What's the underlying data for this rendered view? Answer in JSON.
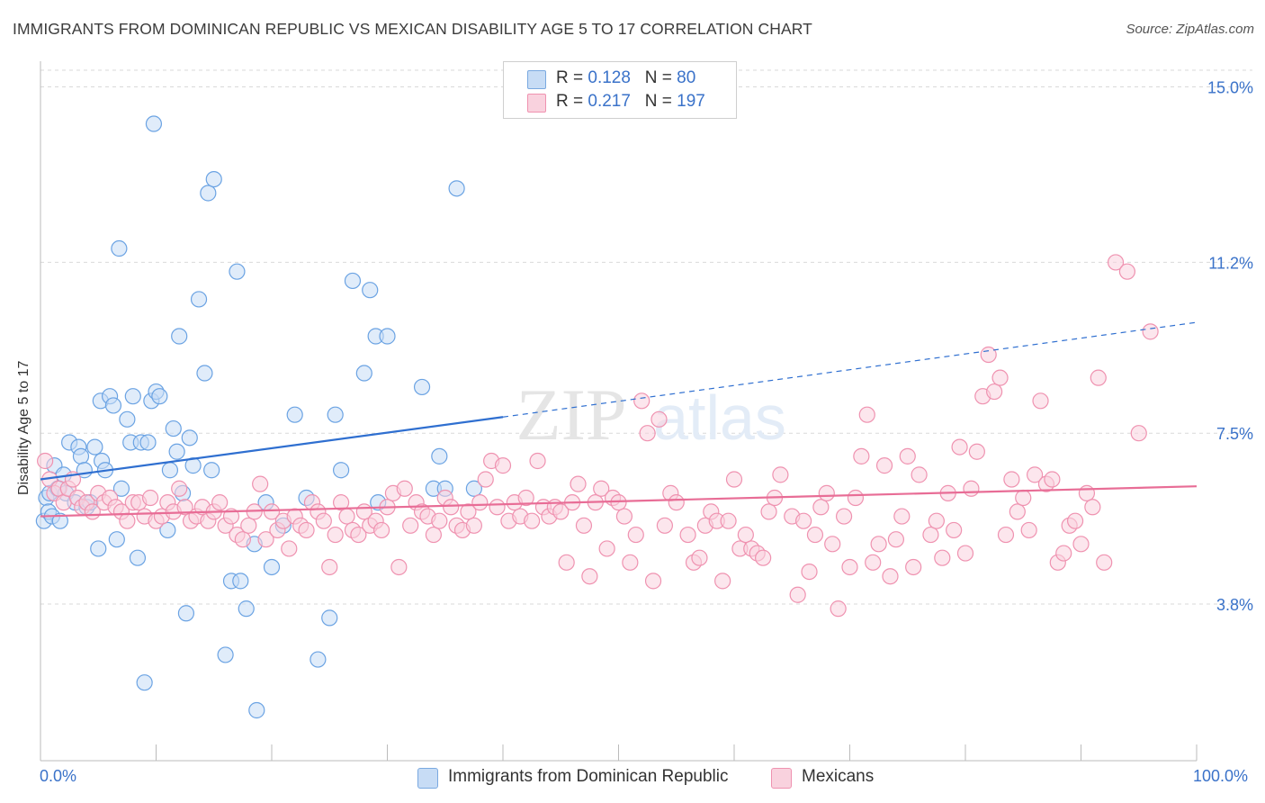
{
  "title": "IMMIGRANTS FROM DOMINICAN REPUBLIC VS MEXICAN DISABILITY AGE 5 TO 17 CORRELATION CHART",
  "source": "Source: ZipAtlas.com",
  "watermark": "ZIPatlas",
  "legend_top": {
    "rows": [
      {
        "r_label": "R = ",
        "r_value": "0.128",
        "n_label": "N = ",
        "n_value": "80",
        "color": "#a9c8f0"
      },
      {
        "r_label": "R = ",
        "r_value": "0.217",
        "n_label": "N = ",
        "n_value": "197",
        "color": "#f6b8cb"
      }
    ]
  },
  "legend_bottom": [
    {
      "label": "Immigrants from Dominican Republic",
      "color": "#a9c8f0"
    },
    {
      "label": "Mexicans",
      "color": "#f6b8cb"
    }
  ],
  "colors": {
    "blue_stroke": "#6ba3e3",
    "blue_fill": "#c7dcf5",
    "blue_line": "#2f6fd0",
    "pink_stroke": "#ef92b0",
    "pink_fill": "#f9d2de",
    "pink_line": "#e86d96",
    "tick_label": "#3a72c9",
    "grid": "#d9d9d9"
  },
  "chart_data": {
    "type": "scatter",
    "title": "IMMIGRANTS FROM DOMINICAN REPUBLIC VS MEXICAN DISABILITY AGE 5 TO 17 CORRELATION CHART",
    "xlabel": "",
    "ylabel": "Disability Age 5 to 17",
    "xlim": [
      0,
      100
    ],
    "ylim": [
      0.5,
      15.5
    ],
    "x_tick_labels": [
      "0.0%",
      "100.0%"
    ],
    "y_ticks": [
      3.8,
      7.5,
      11.2,
      15.0
    ],
    "y_tick_labels": [
      "3.8%",
      "7.5%",
      "11.2%",
      "15.0%"
    ],
    "grid": true,
    "legend_position": "top-center",
    "series": [
      {
        "name": "Immigrants from Dominican Republic",
        "color": "#6ba3e3",
        "trend": {
          "x": [
            0,
            40,
            100
          ],
          "y": [
            6.5,
            7.85,
            9.9
          ],
          "solid_until": 40
        },
        "points": [
          [
            0.3,
            5.6
          ],
          [
            0.5,
            6.1
          ],
          [
            0.7,
            5.8
          ],
          [
            0.8,
            6.2
          ],
          [
            1.0,
            5.7
          ],
          [
            1.2,
            6.8
          ],
          [
            1.5,
            6.3
          ],
          [
            1.7,
            5.6
          ],
          [
            2.0,
            6.6
          ],
          [
            2.2,
            6.2
          ],
          [
            2.5,
            7.3
          ],
          [
            3.0,
            6.0
          ],
          [
            3.3,
            7.2
          ],
          [
            3.5,
            7.0
          ],
          [
            3.8,
            6.7
          ],
          [
            4.0,
            5.9
          ],
          [
            4.3,
            6.0
          ],
          [
            4.7,
            7.2
          ],
          [
            5.0,
            5.0
          ],
          [
            5.3,
            6.9
          ],
          [
            5.6,
            6.7
          ],
          [
            5.2,
            8.2
          ],
          [
            6.0,
            8.3
          ],
          [
            6.3,
            8.1
          ],
          [
            6.6,
            5.2
          ],
          [
            6.8,
            11.5
          ],
          [
            7.0,
            6.3
          ],
          [
            7.5,
            7.8
          ],
          [
            7.8,
            7.3
          ],
          [
            8.0,
            8.3
          ],
          [
            8.4,
            4.8
          ],
          [
            8.7,
            7.3
          ],
          [
            9.0,
            2.1
          ],
          [
            9.3,
            7.3
          ],
          [
            9.6,
            8.2
          ],
          [
            9.8,
            14.2
          ],
          [
            10.0,
            8.4
          ],
          [
            10.3,
            8.3
          ],
          [
            11.0,
            5.4
          ],
          [
            11.2,
            6.7
          ],
          [
            11.5,
            7.6
          ],
          [
            11.8,
            7.1
          ],
          [
            12.0,
            9.6
          ],
          [
            12.3,
            6.2
          ],
          [
            12.6,
            3.6
          ],
          [
            12.9,
            7.4
          ],
          [
            13.2,
            6.8
          ],
          [
            13.7,
            10.4
          ],
          [
            14.2,
            8.8
          ],
          [
            14.5,
            12.7
          ],
          [
            14.8,
            6.7
          ],
          [
            15.0,
            13.0
          ],
          [
            16.0,
            2.7
          ],
          [
            16.5,
            4.3
          ],
          [
            17.0,
            11.0
          ],
          [
            17.3,
            4.3
          ],
          [
            17.8,
            3.7
          ],
          [
            18.5,
            5.1
          ],
          [
            18.7,
            1.5
          ],
          [
            19.5,
            6.0
          ],
          [
            20.0,
            4.6
          ],
          [
            21.0,
            5.5
          ],
          [
            22.0,
            7.9
          ],
          [
            23.0,
            6.1
          ],
          [
            24.0,
            2.6
          ],
          [
            25.0,
            3.5
          ],
          [
            25.5,
            7.9
          ],
          [
            26.0,
            6.7
          ],
          [
            27.0,
            10.8
          ],
          [
            28.0,
            8.8
          ],
          [
            28.5,
            10.6
          ],
          [
            29.0,
            9.6
          ],
          [
            29.2,
            6.0
          ],
          [
            30.0,
            9.6
          ],
          [
            33.0,
            8.5
          ],
          [
            34.0,
            6.3
          ],
          [
            34.5,
            7.0
          ],
          [
            35.0,
            6.3
          ],
          [
            36.0,
            12.8
          ],
          [
            37.5,
            6.3
          ]
        ]
      },
      {
        "name": "Mexicans",
        "color": "#ef92b0",
        "trend": {
          "x": [
            0,
            100
          ],
          "y": [
            5.7,
            6.35
          ]
        },
        "points": [
          [
            0.4,
            6.9
          ],
          [
            0.8,
            6.5
          ],
          [
            1.2,
            6.2
          ],
          [
            1.6,
            6.3
          ],
          [
            2.0,
            6.0
          ],
          [
            2.4,
            6.3
          ],
          [
            2.8,
            6.5
          ],
          [
            3.2,
            6.1
          ],
          [
            3.6,
            5.9
          ],
          [
            4.0,
            6.0
          ],
          [
            4.5,
            5.8
          ],
          [
            5.0,
            6.2
          ],
          [
            5.5,
            6.0
          ],
          [
            6.0,
            6.1
          ],
          [
            6.5,
            5.9
          ],
          [
            7.0,
            5.8
          ],
          [
            7.5,
            5.6
          ],
          [
            8.0,
            6.0
          ],
          [
            8.5,
            6.0
          ],
          [
            9.0,
            5.7
          ],
          [
            9.5,
            6.1
          ],
          [
            10.0,
            5.6
          ],
          [
            10.5,
            5.7
          ],
          [
            11.0,
            6.0
          ],
          [
            11.5,
            5.8
          ],
          [
            12.0,
            6.3
          ],
          [
            12.5,
            5.9
          ],
          [
            13.0,
            5.6
          ],
          [
            13.5,
            5.7
          ],
          [
            14.0,
            5.9
          ],
          [
            14.5,
            5.6
          ],
          [
            15.0,
            5.8
          ],
          [
            15.5,
            6.0
          ],
          [
            16.0,
            5.5
          ],
          [
            16.5,
            5.7
          ],
          [
            17.0,
            5.3
          ],
          [
            17.5,
            5.2
          ],
          [
            18.0,
            5.5
          ],
          [
            18.5,
            5.8
          ],
          [
            19.0,
            6.4
          ],
          [
            19.5,
            5.2
          ],
          [
            20.0,
            5.8
          ],
          [
            20.5,
            5.4
          ],
          [
            21.0,
            5.6
          ],
          [
            21.5,
            5.0
          ],
          [
            22.0,
            5.7
          ],
          [
            22.5,
            5.5
          ],
          [
            23.0,
            5.4
          ],
          [
            23.5,
            6.0
          ],
          [
            24.0,
            5.8
          ],
          [
            24.5,
            5.6
          ],
          [
            25.0,
            4.6
          ],
          [
            25.5,
            5.3
          ],
          [
            26.0,
            6.0
          ],
          [
            26.5,
            5.7
          ],
          [
            27.0,
            5.4
          ],
          [
            27.5,
            5.3
          ],
          [
            28.0,
            5.8
          ],
          [
            28.5,
            5.5
          ],
          [
            29.0,
            5.6
          ],
          [
            29.5,
            5.4
          ],
          [
            30.0,
            5.9
          ],
          [
            30.5,
            6.2
          ],
          [
            31.0,
            4.6
          ],
          [
            31.5,
            6.3
          ],
          [
            32.0,
            5.5
          ],
          [
            32.5,
            6.0
          ],
          [
            33.0,
            5.8
          ],
          [
            33.5,
            5.7
          ],
          [
            34.0,
            5.3
          ],
          [
            34.5,
            5.6
          ],
          [
            35.0,
            6.1
          ],
          [
            35.5,
            5.9
          ],
          [
            36.0,
            5.5
          ],
          [
            36.5,
            5.4
          ],
          [
            37.0,
            5.8
          ],
          [
            37.5,
            5.5
          ],
          [
            38.0,
            6.0
          ],
          [
            38.5,
            6.5
          ],
          [
            39.0,
            6.9
          ],
          [
            39.5,
            5.9
          ],
          [
            40.0,
            6.8
          ],
          [
            40.5,
            5.6
          ],
          [
            41.0,
            6.0
          ],
          [
            41.5,
            5.7
          ],
          [
            42.0,
            6.1
          ],
          [
            42.5,
            5.6
          ],
          [
            43.0,
            6.9
          ],
          [
            43.5,
            5.9
          ],
          [
            44.0,
            5.7
          ],
          [
            44.5,
            5.9
          ],
          [
            45.0,
            5.8
          ],
          [
            45.5,
            4.7
          ],
          [
            46.0,
            6.0
          ],
          [
            46.5,
            6.4
          ],
          [
            47.0,
            5.5
          ],
          [
            47.5,
            4.4
          ],
          [
            48.0,
            6.0
          ],
          [
            48.5,
            6.3
          ],
          [
            49.0,
            5.0
          ],
          [
            49.5,
            6.1
          ],
          [
            50.0,
            6.0
          ],
          [
            50.5,
            5.7
          ],
          [
            51.0,
            4.7
          ],
          [
            51.5,
            5.3
          ],
          [
            52.0,
            8.2
          ],
          [
            52.5,
            7.5
          ],
          [
            53.0,
            4.3
          ],
          [
            53.5,
            7.8
          ],
          [
            54.0,
            5.5
          ],
          [
            54.5,
            6.2
          ],
          [
            55.0,
            6.0
          ],
          [
            56.0,
            5.3
          ],
          [
            56.5,
            4.7
          ],
          [
            57.0,
            4.8
          ],
          [
            57.5,
            5.5
          ],
          [
            58.0,
            5.8
          ],
          [
            58.5,
            5.6
          ],
          [
            59.0,
            4.3
          ],
          [
            59.5,
            5.6
          ],
          [
            60.0,
            6.5
          ],
          [
            60.5,
            5.0
          ],
          [
            61.0,
            5.3
          ],
          [
            61.5,
            5.0
          ],
          [
            62.0,
            4.9
          ],
          [
            62.5,
            4.8
          ],
          [
            63.0,
            5.8
          ],
          [
            63.5,
            6.1
          ],
          [
            64.0,
            6.6
          ],
          [
            65.0,
            5.7
          ],
          [
            65.5,
            4.0
          ],
          [
            66.0,
            5.6
          ],
          [
            66.5,
            4.5
          ],
          [
            67.0,
            5.3
          ],
          [
            67.5,
            5.9
          ],
          [
            68.0,
            6.2
          ],
          [
            68.5,
            5.1
          ],
          [
            69.0,
            3.7
          ],
          [
            69.5,
            5.7
          ],
          [
            70.0,
            4.6
          ],
          [
            70.5,
            6.1
          ],
          [
            71.0,
            7.0
          ],
          [
            71.5,
            7.9
          ],
          [
            72.0,
            4.7
          ],
          [
            72.5,
            5.1
          ],
          [
            73.0,
            6.8
          ],
          [
            73.5,
            4.4
          ],
          [
            74.0,
            5.2
          ],
          [
            74.5,
            5.7
          ],
          [
            75.0,
            7.0
          ],
          [
            75.5,
            4.6
          ],
          [
            76.0,
            6.6
          ],
          [
            77.0,
            5.3
          ],
          [
            77.5,
            5.6
          ],
          [
            78.0,
            4.8
          ],
          [
            78.5,
            6.2
          ],
          [
            79.0,
            5.4
          ],
          [
            79.5,
            7.2
          ],
          [
            80.0,
            4.9
          ],
          [
            80.5,
            6.3
          ],
          [
            81.0,
            7.1
          ],
          [
            81.5,
            8.3
          ],
          [
            82.0,
            9.2
          ],
          [
            82.5,
            8.4
          ],
          [
            83.0,
            8.7
          ],
          [
            83.5,
            5.3
          ],
          [
            84.0,
            6.5
          ],
          [
            84.5,
            5.8
          ],
          [
            85.0,
            6.1
          ],
          [
            85.5,
            5.4
          ],
          [
            86.0,
            6.6
          ],
          [
            86.5,
            8.2
          ],
          [
            87.0,
            6.4
          ],
          [
            87.5,
            6.5
          ],
          [
            88.0,
            4.7
          ],
          [
            88.5,
            4.9
          ],
          [
            89.0,
            5.5
          ],
          [
            89.5,
            5.6
          ],
          [
            90.0,
            5.1
          ],
          [
            90.5,
            6.2
          ],
          [
            91.0,
            5.9
          ],
          [
            91.5,
            8.7
          ],
          [
            92.0,
            4.7
          ],
          [
            93.0,
            11.2
          ],
          [
            94.0,
            11.0
          ],
          [
            95.0,
            7.5
          ],
          [
            96.0,
            9.7
          ]
        ]
      }
    ]
  }
}
